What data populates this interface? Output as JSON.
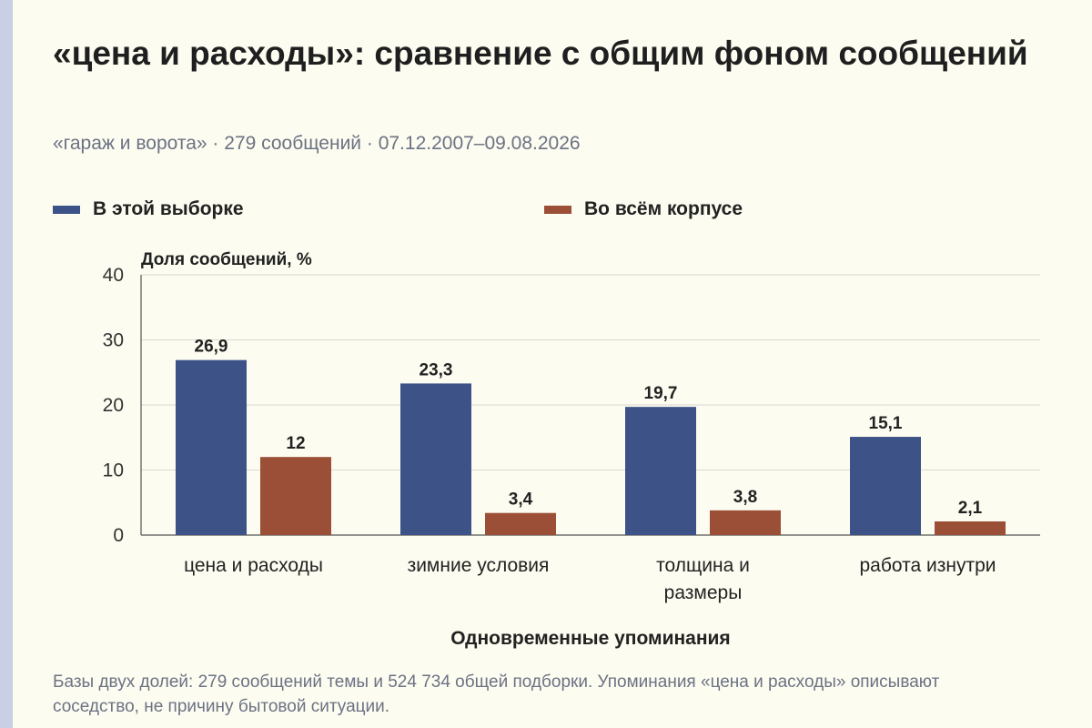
{
  "header": {
    "title": "«цена и расходы»: сравнение с общим фоном сообщений",
    "subtitle": "«гараж и ворота» · 279 сообщений · 07.12.2007–09.08.2026"
  },
  "legend": {
    "items": [
      {
        "label": "В этой выборке",
        "color": "#3d5287"
      },
      {
        "label": "Во всём корпусе",
        "color": "#9b4f36"
      }
    ]
  },
  "chart_data": {
    "type": "bar",
    "ylabel": "Доля сообщений, %",
    "xlabel": "Одновременные упоминания",
    "ylim": [
      0,
      40
    ],
    "yticks": [
      0,
      10,
      20,
      30,
      40
    ],
    "grid": true,
    "legend_position": "top",
    "categories": [
      [
        "цена и расходы"
      ],
      [
        "зимние условия"
      ],
      [
        "толщина и",
        "размеры"
      ],
      [
        "работа изнутри"
      ]
    ],
    "series": [
      {
        "name": "В этой выборке",
        "color": "#3d5287",
        "values": [
          26.9,
          23.3,
          19.7,
          15.1
        ],
        "labels": [
          "26,9",
          "23,3",
          "19,7",
          "15,1"
        ]
      },
      {
        "name": "Во всём корпусе",
        "color": "#9b4f36",
        "values": [
          12,
          3.4,
          3.8,
          2.1
        ],
        "labels": [
          "12",
          "3,4",
          "3,8",
          "2,1"
        ]
      }
    ]
  },
  "footnote": "Базы двух долей: 279 сообщений темы и 524 734 общей подборки. Упоминания «цена и расходы» описывают соседство, не причину бытовой ситуации."
}
